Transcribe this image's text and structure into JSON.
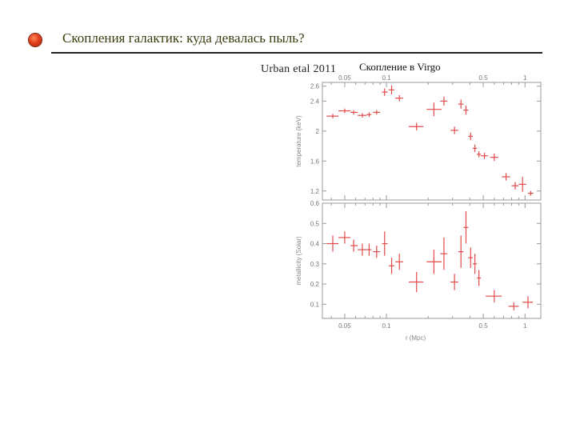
{
  "slide": {
    "title": "Скопления галактик: куда девалась пыль?",
    "author": "Urban  etal 2011",
    "cluster_label": "Скопление в Virgo"
  },
  "colors": {
    "bullet": "#e0401c",
    "data": "#e24a4a",
    "axis": "#9a9a9a"
  },
  "chart_data": [
    {
      "type": "scatter",
      "xlabel": "",
      "ylabel": "temperature (keV)",
      "xscale": "log",
      "xlim": [
        0.0345,
        1.3
      ],
      "ylim": [
        1.08,
        2.65
      ],
      "xticks": [
        {
          "v": 0.05,
          "label": "0.05"
        },
        {
          "v": 0.1,
          "label": "0.1"
        },
        {
          "v": 0.5,
          "label": "0.5"
        },
        {
          "v": 1,
          "label": "1"
        }
      ],
      "yticks": [
        {
          "v": 1.2,
          "label": "1.2"
        },
        {
          "v": 1.6,
          "label": "1.6"
        },
        {
          "v": 2.0,
          "label": "2"
        },
        {
          "v": 2.4,
          "label": "2.4"
        },
        {
          "v": 2.6,
          "label": "2.6"
        }
      ],
      "points": [
        {
          "x": 0.041,
          "y": 2.2,
          "xerr": [
            0.037,
            0.045
          ],
          "yerr": 0.03
        },
        {
          "x": 0.05,
          "y": 2.27,
          "xerr": [
            0.045,
            0.055
          ],
          "yerr": 0.03
        },
        {
          "x": 0.058,
          "y": 2.25,
          "xerr": [
            0.055,
            0.062
          ],
          "yerr": 0.03
        },
        {
          "x": 0.067,
          "y": 2.21,
          "xerr": [
            0.062,
            0.072
          ],
          "yerr": 0.03
        },
        {
          "x": 0.075,
          "y": 2.22,
          "xerr": [
            0.072,
            0.078
          ],
          "yerr": 0.03
        },
        {
          "x": 0.085,
          "y": 2.25,
          "xerr": [
            0.08,
            0.09
          ],
          "yerr": 0.03
        },
        {
          "x": 0.097,
          "y": 2.52,
          "xerr": [
            0.093,
            0.102
          ],
          "yerr": 0.05
        },
        {
          "x": 0.109,
          "y": 2.55,
          "xerr": [
            0.104,
            0.114
          ],
          "yerr": 0.06
        },
        {
          "x": 0.124,
          "y": 2.44,
          "xerr": [
            0.116,
            0.132
          ],
          "yerr": 0.04
        },
        {
          "x": 0.165,
          "y": 2.06,
          "xerr": [
            0.145,
            0.185
          ],
          "yerr": 0.05
        },
        {
          "x": 0.22,
          "y": 2.29,
          "xerr": [
            0.195,
            0.25
          ],
          "yerr": 0.09
        },
        {
          "x": 0.26,
          "y": 2.4,
          "xerr": [
            0.245,
            0.275
          ],
          "yerr": 0.06
        },
        {
          "x": 0.31,
          "y": 2.01,
          "xerr": [
            0.29,
            0.33
          ],
          "yerr": 0.05
        },
        {
          "x": 0.345,
          "y": 2.36,
          "xerr": [
            0.33,
            0.36
          ],
          "yerr": 0.06
        },
        {
          "x": 0.375,
          "y": 2.28,
          "xerr": [
            0.36,
            0.39
          ],
          "yerr": 0.06
        },
        {
          "x": 0.405,
          "y": 1.93,
          "xerr": [
            0.39,
            0.42
          ],
          "yerr": 0.05
        },
        {
          "x": 0.435,
          "y": 1.77,
          "xerr": [
            0.42,
            0.45
          ],
          "yerr": 0.05
        },
        {
          "x": 0.465,
          "y": 1.69,
          "xerr": [
            0.45,
            0.48
          ],
          "yerr": 0.04
        },
        {
          "x": 0.51,
          "y": 1.67,
          "xerr": [
            0.48,
            0.54
          ],
          "yerr": 0.04
        },
        {
          "x": 0.6,
          "y": 1.65,
          "xerr": [
            0.56,
            0.64
          ],
          "yerr": 0.05
        },
        {
          "x": 0.73,
          "y": 1.39,
          "xerr": [
            0.68,
            0.78
          ],
          "yerr": 0.05
        },
        {
          "x": 0.85,
          "y": 1.27,
          "xerr": [
            0.8,
            0.9
          ],
          "yerr": 0.05
        },
        {
          "x": 0.96,
          "y": 1.29,
          "xerr": [
            0.9,
            1.02
          ],
          "yerr": 0.1
        },
        {
          "x": 1.1,
          "y": 1.17,
          "xerr": [
            1.05,
            1.15
          ],
          "yerr": 0.03
        }
      ]
    },
    {
      "type": "scatter",
      "xlabel": "r (Mpc)",
      "ylabel": "metallicity (Solar)",
      "xscale": "log",
      "xlim": [
        0.0345,
        1.3
      ],
      "ylim": [
        0.03,
        0.6
      ],
      "xticks": [
        {
          "v": 0.05,
          "label": "0.05"
        },
        {
          "v": 0.1,
          "label": "0.1"
        },
        {
          "v": 0.5,
          "label": "0.5"
        },
        {
          "v": 1,
          "label": "1"
        }
      ],
      "yticks": [
        {
          "v": 0.1,
          "label": "0.1"
        },
        {
          "v": 0.2,
          "label": "0.2"
        },
        {
          "v": 0.3,
          "label": "0.3"
        },
        {
          "v": 0.4,
          "label": "0.4"
        },
        {
          "v": 0.5,
          "label": "0.5"
        },
        {
          "v": 0.6,
          "label": "0.6"
        }
      ],
      "points": [
        {
          "x": 0.041,
          "y": 0.4,
          "xerr": [
            0.037,
            0.045
          ],
          "yerr": 0.04
        },
        {
          "x": 0.05,
          "y": 0.43,
          "xerr": [
            0.045,
            0.055
          ],
          "yerr": 0.03
        },
        {
          "x": 0.058,
          "y": 0.39,
          "xerr": [
            0.055,
            0.062
          ],
          "yerr": 0.03
        },
        {
          "x": 0.067,
          "y": 0.37,
          "xerr": [
            0.062,
            0.072
          ],
          "yerr": 0.03
        },
        {
          "x": 0.075,
          "y": 0.37,
          "xerr": [
            0.072,
            0.078
          ],
          "yerr": 0.03
        },
        {
          "x": 0.085,
          "y": 0.36,
          "xerr": [
            0.08,
            0.09
          ],
          "yerr": 0.03
        },
        {
          "x": 0.097,
          "y": 0.4,
          "xerr": [
            0.093,
            0.102
          ],
          "yerr": 0.06
        },
        {
          "x": 0.109,
          "y": 0.29,
          "xerr": [
            0.104,
            0.114
          ],
          "yerr": 0.04
        },
        {
          "x": 0.124,
          "y": 0.31,
          "xerr": [
            0.116,
            0.132
          ],
          "yerr": 0.04
        },
        {
          "x": 0.165,
          "y": 0.21,
          "xerr": [
            0.145,
            0.185
          ],
          "yerr": 0.05
        },
        {
          "x": 0.22,
          "y": 0.31,
          "xerr": [
            0.195,
            0.25
          ],
          "yerr": 0.06
        },
        {
          "x": 0.26,
          "y": 0.35,
          "xerr": [
            0.245,
            0.275
          ],
          "yerr": 0.08
        },
        {
          "x": 0.31,
          "y": 0.21,
          "xerr": [
            0.29,
            0.33
          ],
          "yerr": 0.04
        },
        {
          "x": 0.345,
          "y": 0.36,
          "xerr": [
            0.33,
            0.36
          ],
          "yerr": 0.08
        },
        {
          "x": 0.375,
          "y": 0.48,
          "xerr": [
            0.36,
            0.39
          ],
          "yerr": 0.08
        },
        {
          "x": 0.405,
          "y": 0.33,
          "xerr": [
            0.39,
            0.42
          ],
          "yerr": 0.05
        },
        {
          "x": 0.435,
          "y": 0.3,
          "xerr": [
            0.42,
            0.45
          ],
          "yerr": 0.05
        },
        {
          "x": 0.465,
          "y": 0.23,
          "xerr": [
            0.45,
            0.48
          ],
          "yerr": 0.04
        },
        {
          "x": 0.6,
          "y": 0.14,
          "xerr": [
            0.52,
            0.68
          ],
          "yerr": 0.03
        },
        {
          "x": 0.83,
          "y": 0.09,
          "xerr": [
            0.76,
            0.9
          ],
          "yerr": 0.02
        },
        {
          "x": 1.05,
          "y": 0.11,
          "xerr": [
            0.96,
            1.14
          ],
          "yerr": 0.03
        }
      ]
    }
  ]
}
